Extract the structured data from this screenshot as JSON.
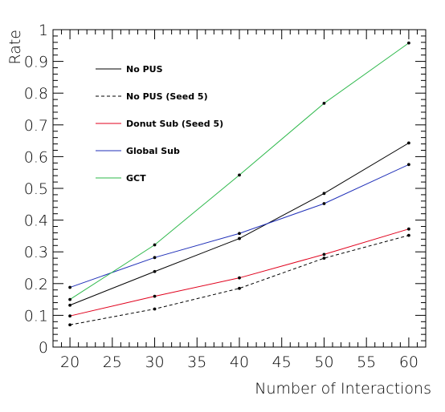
{
  "chart_data": {
    "type": "line",
    "title": "",
    "xlabel": "Number of Interactions",
    "ylabel": "Rate",
    "xlim": [
      18,
      62
    ],
    "ylim": [
      0,
      1
    ],
    "x_ticks": [
      "20",
      "25",
      "30",
      "35",
      "40",
      "45",
      "50",
      "55",
      "60"
    ],
    "y_ticks": [
      "0",
      "0.1",
      "0.2",
      "0.3",
      "0.4",
      "0.5",
      "0.6",
      "0.7",
      "0.8",
      "0.9",
      "1"
    ],
    "grid": false,
    "legend_position": "top-left",
    "series": [
      {
        "name": "No PUS",
        "color": "#000000",
        "dash": false,
        "x": [
          20,
          30,
          40,
          50,
          60
        ],
        "y": [
          0.132,
          0.238,
          0.342,
          0.484,
          0.643
        ]
      },
      {
        "name": "No PUS (Seed 5)",
        "color": "#000000",
        "dash": true,
        "x": [
          20,
          30,
          40,
          50,
          60
        ],
        "y": [
          0.07,
          0.12,
          0.185,
          0.28,
          0.352
        ]
      },
      {
        "name": "Donut Sub (Seed 5)",
        "color": "#e0001c",
        "dash": false,
        "x": [
          20,
          30,
          40,
          50,
          60
        ],
        "y": [
          0.098,
          0.16,
          0.218,
          0.292,
          0.372
        ]
      },
      {
        "name": "Global Sub",
        "color": "#1f2fb8",
        "dash": false,
        "x": [
          20,
          30,
          40,
          50,
          60
        ],
        "y": [
          0.188,
          0.282,
          0.358,
          0.452,
          0.575
        ]
      },
      {
        "name": "GCT",
        "color": "#2cb84a",
        "dash": false,
        "x": [
          20,
          30,
          40,
          50,
          60
        ],
        "y": [
          0.15,
          0.322,
          0.542,
          0.768,
          0.958
        ]
      }
    ]
  }
}
